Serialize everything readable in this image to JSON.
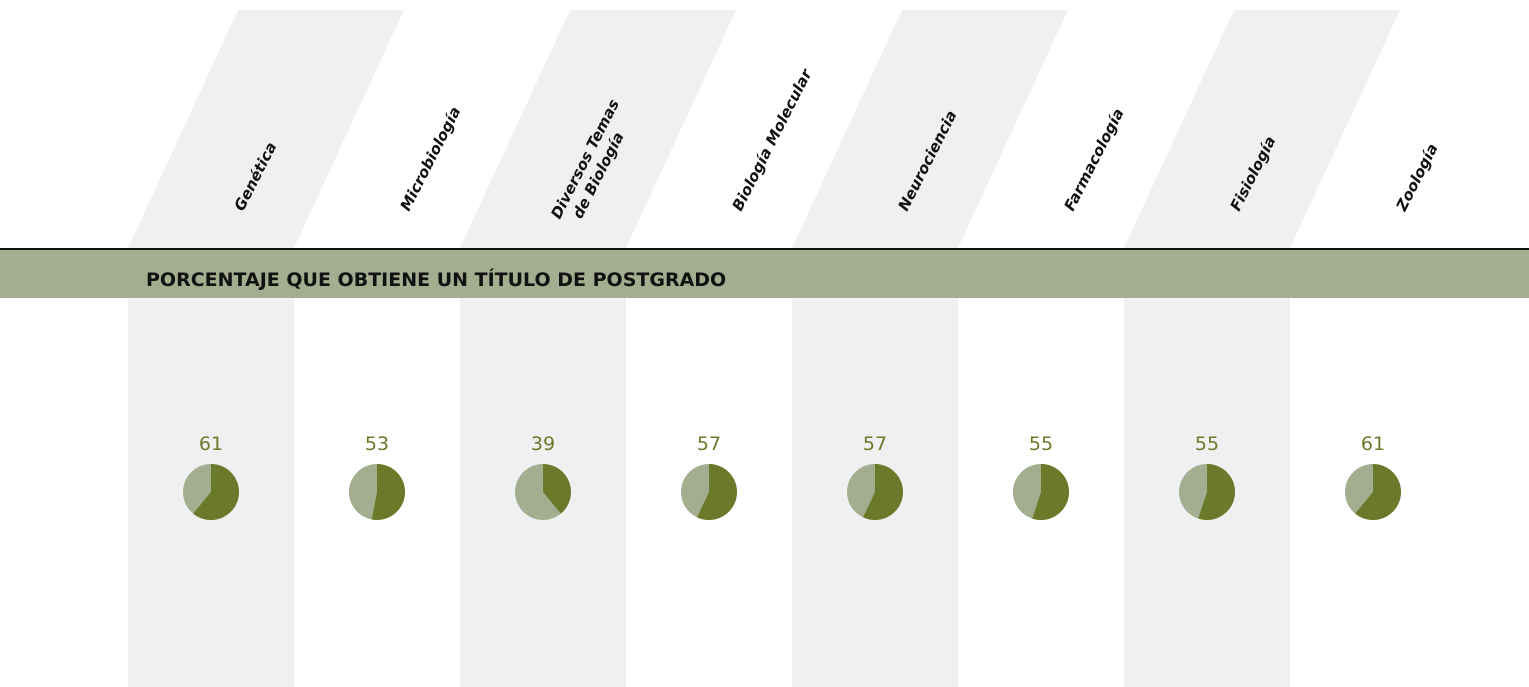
{
  "chart_data": {
    "type": "pie",
    "title": "PORCENTAJE QUE OBTIENE UN TÍTULO DE POSTGRADO",
    "categories": [
      "Genética",
      "Microbiología",
      "Diversos Temas de Biología",
      "Biología Molecular",
      "Neurociencia",
      "Farmacología",
      "Fisiología",
      "Zoología"
    ],
    "values": [
      61,
      53,
      39,
      57,
      57,
      55,
      55,
      61
    ],
    "color": "#6b7a2a",
    "rest_color": "#a3ad8f"
  }
}
